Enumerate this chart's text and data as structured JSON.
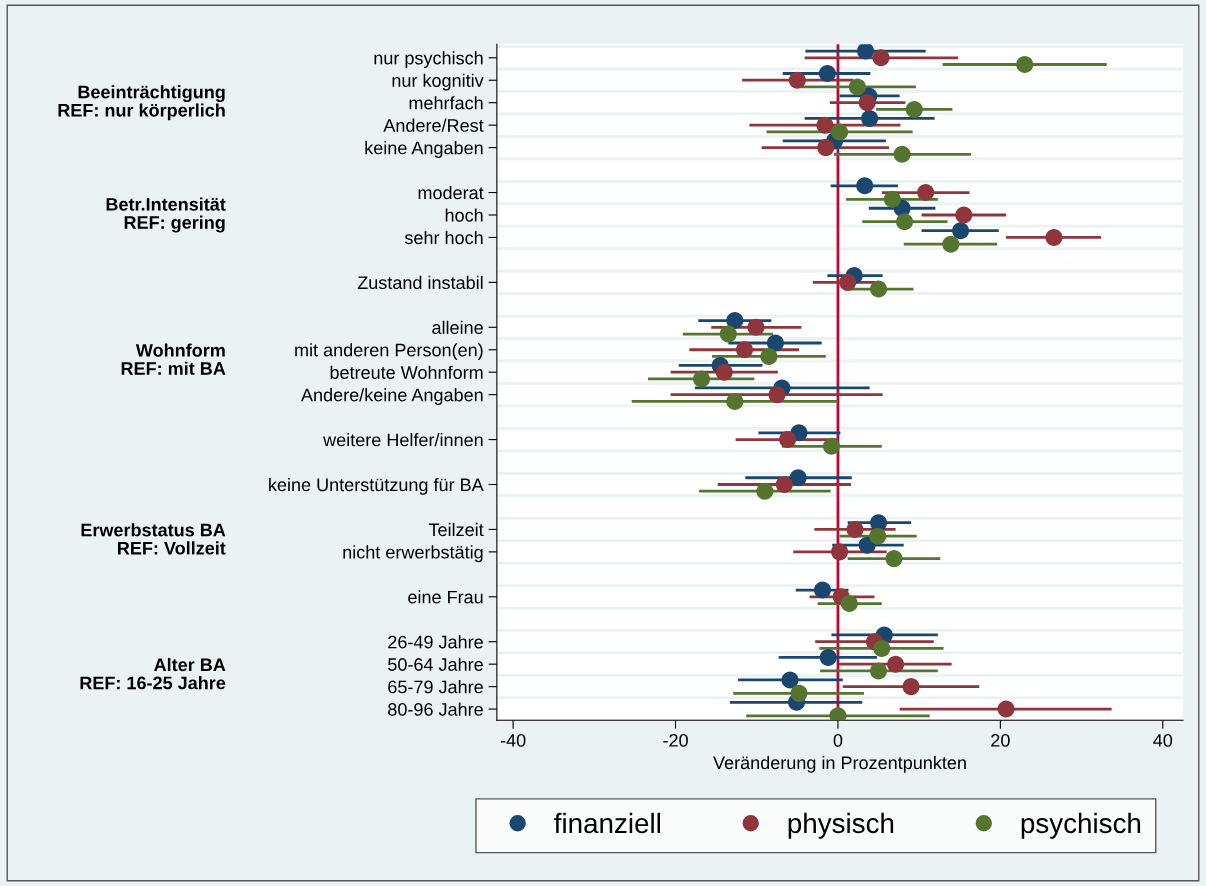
{
  "chart_data": {
    "type": "scatter",
    "orientation": "horizontal",
    "xlabel": "Veränderung in Prozentpunkten",
    "categories": [
      "nur psychisch",
      "nur kognitiv",
      "mehrfach",
      "Andere/Rest",
      "keine Angaben",
      null,
      "moderat",
      "hoch",
      "sehr hoch",
      null,
      "Zustand instabil",
      null,
      "alleine",
      "mit anderen Person(en)",
      "betreute Wohnform",
      "Andere/keine Angaben",
      null,
      "weitere Helfer/innen",
      null,
      "keine Unterstützung für BA",
      null,
      "Teilzeit",
      "nicht erwerbstätig",
      null,
      "eine Frau",
      null,
      "26-49 Jahre",
      "50-64 Jahre",
      "65-79 Jahre",
      "80-96 Jahre"
    ],
    "series": [
      {
        "name": "finanziell",
        "color": "#1a476f",
        "values": [
          3.4,
          -1.3,
          3.8,
          3.9,
          -0.4,
          null,
          3.3,
          7.9,
          15.1,
          null,
          2.0,
          null,
          -12.7,
          -7.7,
          -14.5,
          -6.9,
          null,
          -4.8,
          null,
          -4.9,
          null,
          5.0,
          3.6,
          null,
          -1.9,
          null,
          5.7,
          -1.2,
          -5.9,
          -5.1
        ],
        "errors": [
          [
            -4.0,
            10.8
          ],
          [
            -6.8,
            4.0
          ],
          [
            0.2,
            7.6
          ],
          [
            -4.1,
            11.9
          ],
          [
            -6.8,
            5.9
          ],
          null,
          [
            -0.9,
            7.4
          ],
          [
            3.8,
            12.0
          ],
          [
            10.3,
            19.8
          ],
          null,
          [
            -1.3,
            5.5
          ],
          null,
          [
            -17.2,
            -8.2
          ],
          [
            -13.5,
            -2.0
          ],
          [
            -19.6,
            -9.3
          ],
          [
            -17.6,
            3.9
          ],
          null,
          [
            -9.8,
            0.3
          ],
          null,
          [
            -11.4,
            1.7
          ],
          null,
          [
            1.2,
            9.0
          ],
          [
            -0.7,
            8.1
          ],
          null,
          [
            -5.2,
            1.3
          ],
          null,
          [
            -0.8,
            12.3
          ],
          [
            -7.3,
            4.8
          ],
          [
            -12.3,
            0.6
          ],
          [
            -13.3,
            3.0
          ]
        ]
      },
      {
        "name": "physisch",
        "color": "#90353b",
        "values": [
          5.3,
          -5.0,
          3.6,
          -1.6,
          -1.5,
          null,
          10.8,
          15.5,
          26.6,
          null,
          1.2,
          null,
          -10.1,
          -11.5,
          -14.0,
          -7.5,
          null,
          -6.2,
          null,
          -6.6,
          null,
          2.1,
          0.2,
          null,
          0.4,
          null,
          4.5,
          7.1,
          9.0,
          20.7
        ],
        "errors": [
          [
            -4.1,
            14.8
          ],
          [
            -11.8,
            1.9
          ],
          [
            -1.0,
            8.3
          ],
          [
            -10.9,
            7.7
          ],
          [
            -9.4,
            6.3
          ],
          null,
          [
            5.4,
            16.2
          ],
          [
            10.3,
            20.7
          ],
          [
            20.7,
            32.4
          ],
          null,
          [
            -3.1,
            5.3
          ],
          null,
          [
            -15.6,
            -4.5
          ],
          [
            -18.3,
            -4.8
          ],
          [
            -20.6,
            -7.4
          ],
          [
            -20.6,
            5.5
          ],
          null,
          [
            -12.6,
            0.1
          ],
          null,
          [
            -14.8,
            1.6
          ],
          null,
          [
            -2.9,
            7.1
          ],
          [
            -5.5,
            6.0
          ],
          null,
          [
            -3.5,
            4.5
          ],
          null,
          [
            -2.8,
            11.8
          ],
          [
            0.1,
            14.0
          ],
          [
            0.6,
            17.4
          ],
          [
            7.6,
            33.7
          ]
        ]
      },
      {
        "name": "psychisch",
        "color": "#55752f",
        "values": [
          23.0,
          2.4,
          9.4,
          0.2,
          7.9,
          null,
          6.7,
          8.2,
          13.9,
          null,
          5.0,
          null,
          -13.5,
          -8.5,
          -16.8,
          -12.7,
          null,
          -0.8,
          null,
          -9.0,
          null,
          4.9,
          6.9,
          null,
          1.4,
          null,
          5.4,
          5.0,
          -4.8,
          0.0
        ],
        "errors": [
          [
            12.9,
            33.1
          ],
          [
            -4.6,
            9.6
          ],
          [
            4.7,
            14.1
          ],
          [
            -8.8,
            9.2
          ],
          [
            -0.5,
            16.4
          ],
          null,
          [
            1.0,
            12.3
          ],
          [
            3.0,
            13.5
          ],
          [
            8.1,
            19.6
          ],
          null,
          [
            0.9,
            9.3
          ],
          null,
          [
            -19.1,
            -8.0
          ],
          [
            -15.5,
            -1.5
          ],
          [
            -23.4,
            -10.3
          ],
          [
            -25.4,
            0.0
          ],
          null,
          [
            -6.9,
            5.4
          ],
          null,
          [
            -17.1,
            -0.9
          ],
          null,
          [
            0.2,
            9.7
          ],
          [
            1.2,
            12.6
          ],
          null,
          [
            -2.5,
            5.4
          ],
          null,
          [
            -2.3,
            13.0
          ],
          [
            -2.2,
            12.3
          ],
          [
            -12.9,
            3.2
          ],
          [
            -11.3,
            11.3
          ]
        ]
      }
    ],
    "xlim": [
      -42,
      42.5
    ],
    "xticks": [
      -40,
      -20,
      0,
      20,
      40
    ],
    "ref_lines": [
      {
        "axis": "x",
        "value": 0,
        "color": "#c10534"
      }
    ],
    "annotations": [
      "Beeinträchtigung\nREF: nur körperlich",
      "Betr.Intensität\nREF: gering",
      "Wohnform\nREF: mit BA",
      "Erwerbstatus BA\nREF: Vollzeit",
      "Alter BA\nREF: 16-25 Jahre"
    ],
    "grid": "y",
    "legend": "bottom",
    "marker": "circle"
  }
}
